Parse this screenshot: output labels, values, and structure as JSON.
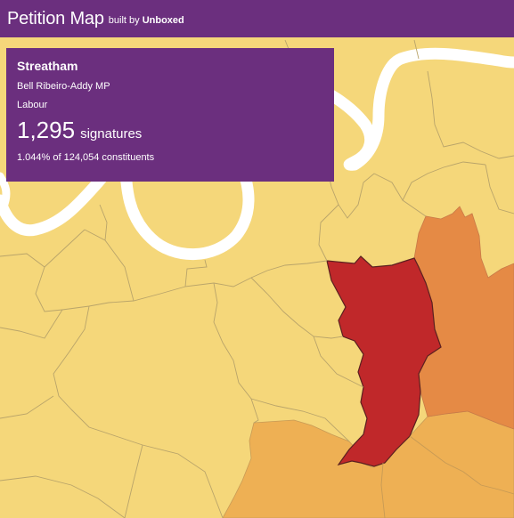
{
  "header": {
    "title": "Petition Map",
    "built_prefix": "built by",
    "built_brand": "Unboxed"
  },
  "info_panel": {
    "constituency": "Streatham",
    "mp": "Bell Ribeiro-Addy MP",
    "party": "Labour",
    "signatures_count": "1,295",
    "signatures_label": "signatures",
    "share_text": "1.044% of 124,054 constituents"
  },
  "map": {
    "colors": {
      "base_fill": "#f5d77a",
      "river": "#ffffff",
      "border": "#b9a46a",
      "highlight_selected": "#c0282a",
      "high": "#e58a45",
      "medium": "#eeb054",
      "panel": "#6b2f7e"
    },
    "selected_region": "Streatham"
  }
}
